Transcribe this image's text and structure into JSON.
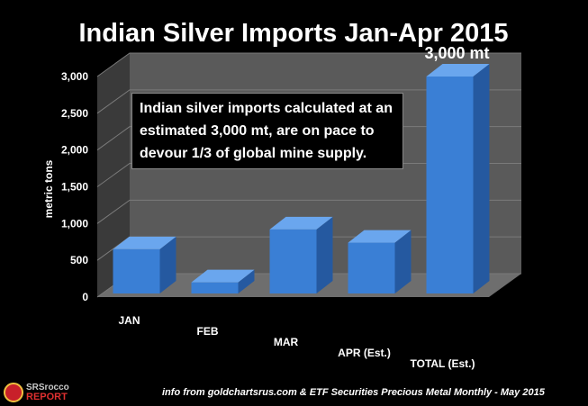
{
  "chart_data": {
    "type": "bar",
    "title": "Indian Silver Imports Jan-Apr 2015",
    "ylabel": "metric tons",
    "xlabel": "",
    "categories": [
      "JAN",
      "FEB",
      "MAR",
      "APR  (Est.)",
      "TOTAL  (Est.)"
    ],
    "values": [
      650,
      200,
      920,
      740,
      3000
    ],
    "ylim": [
      0,
      3000
    ],
    "yticks": [
      "0",
      "500",
      "1,000",
      "1,500",
      "2,000",
      "2,500",
      "3,000"
    ],
    "ytick_values": [
      0,
      500,
      1000,
      1500,
      2000,
      2500,
      3000
    ],
    "data_labels": [
      "",
      "",
      "",
      "",
      "3,000 mt"
    ],
    "grid": true,
    "bar_color": "#3a7fd5",
    "annotation": "Indian silver imports calculated at an estimated 3,000 mt, are on pace to devour 1/3 of global mine supply."
  },
  "footer": {
    "logo_line1": "SRSrocco",
    "logo_line2": "REPORT",
    "source": "info from goldchartsrus.com & ETF Securities Precious Metal Monthly - May 2015"
  }
}
